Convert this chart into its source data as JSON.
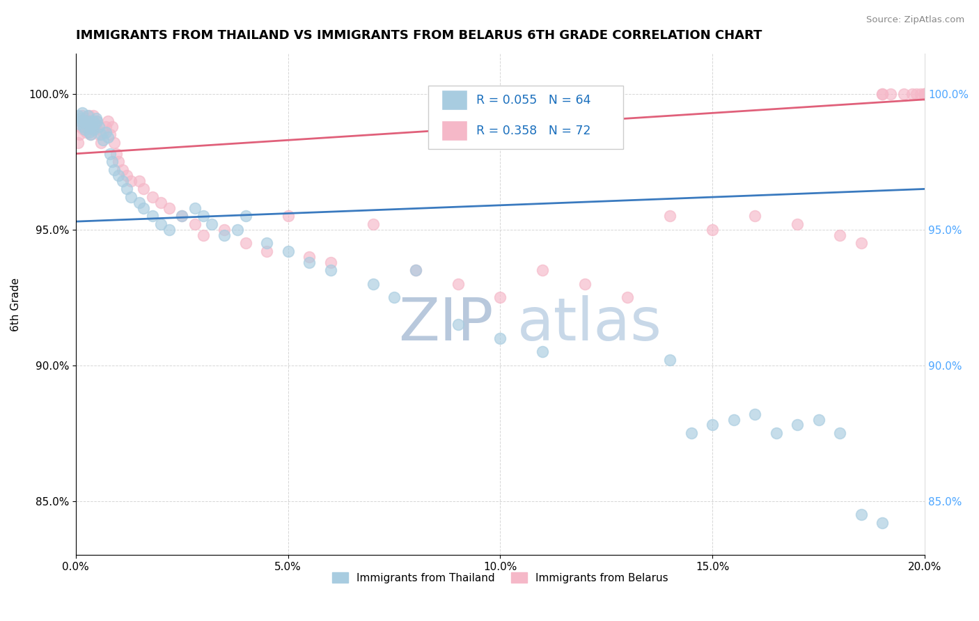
{
  "title": "IMMIGRANTS FROM THAILAND VS IMMIGRANTS FROM BELARUS 6TH GRADE CORRELATION CHART",
  "source_text": "Source: ZipAtlas.com",
  "ylabel": "6th Grade",
  "x_min": 0.0,
  "x_max": 20.0,
  "y_min": 83.0,
  "y_max": 101.5,
  "x_ticks": [
    0.0,
    5.0,
    10.0,
    15.0,
    20.0
  ],
  "x_tick_labels": [
    "0.0%",
    "5.0%",
    "10.0%",
    "15.0%",
    "20.0%"
  ],
  "y_ticks": [
    85.0,
    90.0,
    95.0,
    100.0
  ],
  "y_tick_labels": [
    "85.0%",
    "90.0%",
    "95.0%",
    "100.0%"
  ],
  "series_thailand": {
    "color": "#a8cce0",
    "R": 0.055,
    "N": 64,
    "label": "Immigrants from Thailand",
    "trend_color": "#3a7abf",
    "trend_y0": 95.3,
    "trend_y1": 96.5,
    "x": [
      0.05,
      0.08,
      0.1,
      0.12,
      0.15,
      0.18,
      0.2,
      0.22,
      0.25,
      0.28,
      0.3,
      0.32,
      0.35,
      0.38,
      0.4,
      0.42,
      0.45,
      0.48,
      0.5,
      0.55,
      0.6,
      0.65,
      0.7,
      0.75,
      0.8,
      0.85,
      0.9,
      1.0,
      1.1,
      1.2,
      1.3,
      1.5,
      1.6,
      1.8,
      2.0,
      2.2,
      2.5,
      2.8,
      3.0,
      3.2,
      3.5,
      3.8,
      4.0,
      4.5,
      5.0,
      5.5,
      6.0,
      7.0,
      7.5,
      8.0,
      9.0,
      10.0,
      11.0,
      14.0,
      14.5,
      15.0,
      15.5,
      16.0,
      16.5,
      17.0,
      17.5,
      18.0,
      18.5,
      19.0
    ],
    "y": [
      99.2,
      98.9,
      99.0,
      99.1,
      99.3,
      98.8,
      99.0,
      98.7,
      98.9,
      99.2,
      99.0,
      98.6,
      98.5,
      98.8,
      99.0,
      98.7,
      98.9,
      99.1,
      99.0,
      98.8,
      98.5,
      98.3,
      98.6,
      98.4,
      97.8,
      97.5,
      97.2,
      97.0,
      96.8,
      96.5,
      96.2,
      96.0,
      95.8,
      95.5,
      95.2,
      95.0,
      95.5,
      95.8,
      95.5,
      95.2,
      94.8,
      95.0,
      95.5,
      94.5,
      94.2,
      93.8,
      93.5,
      93.0,
      92.5,
      93.5,
      91.5,
      91.0,
      90.5,
      90.2,
      87.5,
      87.8,
      88.0,
      88.2,
      87.5,
      87.8,
      88.0,
      87.5,
      84.5,
      84.2
    ]
  },
  "series_belarus": {
    "color": "#f5b8c8",
    "R": 0.358,
    "N": 72,
    "label": "Immigrants from Belarus",
    "trend_color": "#e0607a",
    "trend_y0": 97.8,
    "trend_y1": 99.8,
    "x": [
      0.05,
      0.08,
      0.1,
      0.12,
      0.15,
      0.18,
      0.2,
      0.22,
      0.25,
      0.28,
      0.3,
      0.32,
      0.35,
      0.38,
      0.4,
      0.42,
      0.45,
      0.48,
      0.5,
      0.55,
      0.6,
      0.65,
      0.7,
      0.75,
      0.8,
      0.85,
      0.9,
      0.95,
      1.0,
      1.1,
      1.2,
      1.3,
      1.5,
      1.6,
      1.8,
      2.0,
      2.2,
      2.5,
      2.8,
      3.0,
      3.5,
      4.0,
      4.5,
      5.0,
      5.5,
      6.0,
      7.0,
      8.0,
      9.0,
      10.0,
      11.0,
      12.0,
      13.0,
      14.0,
      15.0,
      16.0,
      17.0,
      18.0,
      18.5,
      19.0,
      19.2,
      19.5,
      19.7,
      19.8,
      19.9,
      20.0,
      20.0,
      20.0,
      20.0,
      20.0,
      20.0,
      19.0
    ],
    "y": [
      98.2,
      98.5,
      98.8,
      99.0,
      99.2,
      98.7,
      98.9,
      99.1,
      98.6,
      98.8,
      99.0,
      99.2,
      98.5,
      98.8,
      99.0,
      99.2,
      98.7,
      98.9,
      99.0,
      98.5,
      98.2,
      98.6,
      98.8,
      99.0,
      98.5,
      98.8,
      98.2,
      97.8,
      97.5,
      97.2,
      97.0,
      96.8,
      96.8,
      96.5,
      96.2,
      96.0,
      95.8,
      95.5,
      95.2,
      94.8,
      95.0,
      94.5,
      94.2,
      95.5,
      94.0,
      93.8,
      95.2,
      93.5,
      93.0,
      92.5,
      93.5,
      93.0,
      92.5,
      95.5,
      95.0,
      95.5,
      95.2,
      94.8,
      94.5,
      100.0,
      100.0,
      100.0,
      100.0,
      100.0,
      100.0,
      100.0,
      100.0,
      100.0,
      100.0,
      100.0,
      100.0,
      100.0
    ]
  },
  "legend_color": "#1a6fbd",
  "watermark_top": "ZIP",
  "watermark_bottom": "atlas",
  "watermark_color": "#d0dff0",
  "background_color": "#ffffff",
  "grid_color": "#cccccc",
  "title_fontsize": 13,
  "axis_label_fontsize": 11,
  "tick_fontsize": 11,
  "right_tick_color": "#4da6ff"
}
